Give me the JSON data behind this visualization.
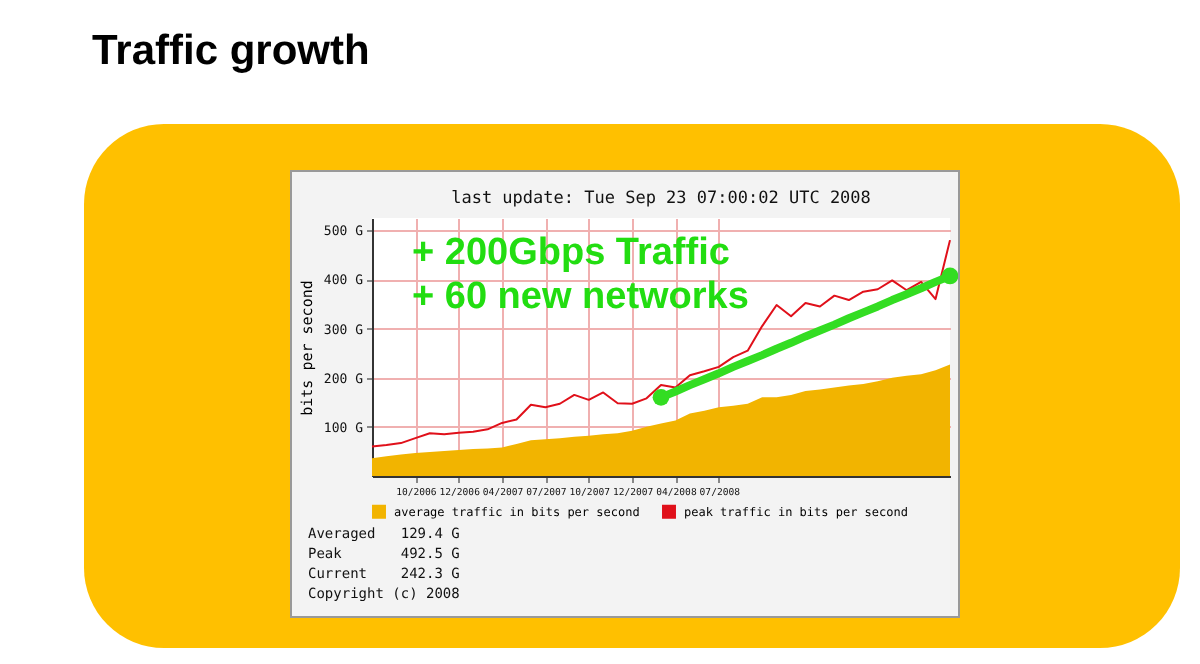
{
  "chart_data": {
    "type": "area",
    "title": "Traffic growth",
    "subtitle": "last update: Tue Sep 23 07:00:02 UTC 2008",
    "ylabel": "bits per second",
    "categories": [
      null,
      null,
      null,
      "10/2006",
      null,
      null,
      "12/2006",
      null,
      null,
      "04/2007",
      null,
      null,
      "07/2007",
      null,
      null,
      "10/2007",
      null,
      null,
      "12/2007",
      null,
      null,
      "04/2008",
      null,
      null,
      "07/2008",
      null,
      null,
      null,
      null,
      null,
      null,
      null,
      null,
      null,
      null,
      null,
      null,
      null,
      null,
      null,
      null
    ],
    "ylim": [
      0,
      525
    ],
    "yticks": [
      {
        "value": 100,
        "label": "100 G"
      },
      {
        "value": 200,
        "label": "200 G"
      },
      {
        "value": 300,
        "label": "300 G"
      },
      {
        "value": 400,
        "label": "400 G"
      },
      {
        "value": 500,
        "label": "500 G"
      }
    ],
    "grid": true,
    "legend": "bottom",
    "series": [
      {
        "name": "average traffic in bits per second",
        "color": "#f2b400",
        "values": [
          36,
          40,
          44,
          47,
          49,
          51,
          53,
          55,
          56,
          58,
          65,
          73,
          75,
          77,
          80,
          82,
          85,
          87,
          92,
          100,
          107,
          113,
          127,
          133,
          140,
          143,
          147,
          160,
          160,
          165,
          173,
          176,
          180,
          184,
          187,
          193,
          200,
          204,
          207,
          215,
          227
        ]
      },
      {
        "name": "peak traffic in bits per second",
        "type": "line",
        "color": "#e0101a",
        "values": [
          60,
          63,
          67,
          77,
          87,
          85,
          88,
          90,
          95,
          108,
          115,
          145,
          140,
          147,
          165,
          155,
          170,
          148,
          147,
          158,
          185,
          180,
          205,
          213,
          222,
          242,
          255,
          305,
          348,
          325,
          352,
          345,
          367,
          358,
          375,
          380,
          398,
          378,
          395,
          360,
          480
        ]
      },
      {
        "type": "line",
        "color": "#33dd22",
        "values": [
          null,
          null,
          null,
          null,
          null,
          null,
          null,
          null,
          null,
          null,
          null,
          null,
          null,
          null,
          null,
          null,
          null,
          null,
          null,
          null,
          160,
          172,
          185,
          197,
          209,
          222,
          234,
          246,
          259,
          271,
          284,
          296,
          308,
          321,
          333,
          345,
          358,
          370,
          382,
          395,
          407
        ]
      },
      {
        "type": "scatter",
        "color": "#33dd22",
        "marker": "circle",
        "values": [
          null,
          null,
          null,
          null,
          null,
          null,
          null,
          null,
          null,
          null,
          null,
          null,
          null,
          null,
          null,
          null,
          null,
          null,
          null,
          null,
          160,
          null,
          null,
          null,
          null,
          null,
          null,
          null,
          null,
          null,
          null,
          null,
          null,
          null,
          null,
          null,
          null,
          null,
          null,
          null,
          407
        ]
      }
    ],
    "annotations": [
      "+ 200Gbps Traffic",
      "+ 60 new networks",
      "Averaged   129.4 G",
      "Peak       492.5 G",
      "Current    242.3 G",
      "Copyright (c) 2008"
    ]
  }
}
